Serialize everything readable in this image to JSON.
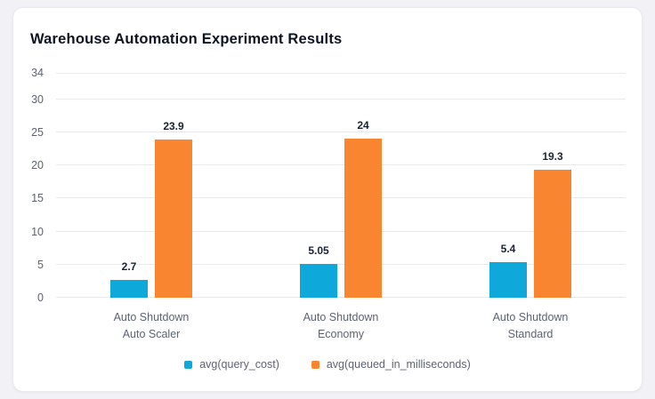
{
  "card": {
    "title": "Warehouse Automation Experiment Results"
  },
  "colors": {
    "page_background": "#F2F2F6",
    "card_background": "#FFFFFF",
    "card_border": "#EAEAF0",
    "gridline": "#E9E9F0",
    "axis_text": "#5C6373",
    "value_label_text": "#1A2233",
    "title_text": "#0D1322",
    "series_blue": "#0FA8DB",
    "series_orange": "#FA8531"
  },
  "chart_data": {
    "type": "bar",
    "title": "Warehouse Automation Experiment Results",
    "xlabel": "",
    "ylabel": "",
    "ylim": [
      0,
      34
    ],
    "yticks": [
      34,
      30,
      25,
      20,
      15,
      10,
      5,
      0
    ],
    "grid": true,
    "legend_position": "bottom",
    "categories": [
      [
        "Auto Shutdown",
        "Auto Scaler"
      ],
      [
        "Auto Shutdown",
        "Economy"
      ],
      [
        "Auto Shutdown",
        "Standard"
      ]
    ],
    "series": [
      {
        "name": "avg(query_cost)",
        "color": "#0FA8DB",
        "values": [
          2.7,
          5.05,
          5.4
        ],
        "labels": [
          "2.7",
          "5.05",
          "5.4"
        ]
      },
      {
        "name": "avg(queued_in_milliseconds)",
        "color": "#FA8531",
        "values": [
          23.9,
          24,
          19.3
        ],
        "labels": [
          "23.9",
          "24",
          "19.3"
        ]
      }
    ]
  }
}
